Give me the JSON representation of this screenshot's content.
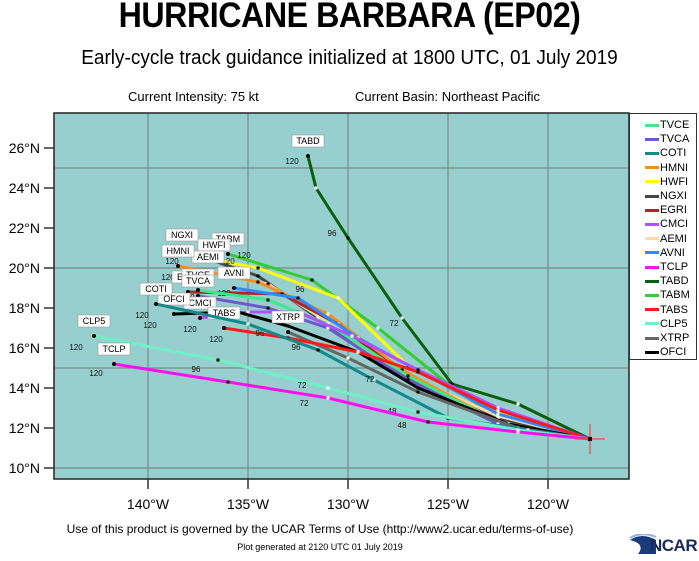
{
  "header": {
    "title": "HURRICANE BARBARA (EP02)",
    "subtitle": "Early-cycle track guidance initialized at 1800 UTC, 01 July 2019",
    "intensity": "Current Intensity: 75 kt",
    "basin": "Current Basin: Northeast Pacific"
  },
  "footer": {
    "terms": "Use of this product is governed by the UCAR Terms of Use (http://www2.ucar.edu/terms-of-use)",
    "generated": "Plot generated at 2120 UTC   01 July 2019",
    "logo": "NCAR"
  },
  "colors": {
    "ocean": "#97cfce",
    "grid": "#7a8a8a",
    "marker": "#e05050"
  },
  "chart_data": {
    "type": "map-tracks",
    "title": "HURRICANE BARBARA (EP02)",
    "subtitle": "Early-cycle track guidance initialized at 1800 UTC, 01 July 2019",
    "lon_range": [
      -144.7,
      -116.0
    ],
    "lat_range": [
      9.5,
      27.75
    ],
    "lon_ticks": [
      "140°W",
      "135°W",
      "130°W",
      "125°W",
      "120°W"
    ],
    "lon_tick_values": [
      -140,
      -135,
      -130,
      -125,
      -120
    ],
    "lat_ticks": [
      "10°N",
      "12°N",
      "14°N",
      "16°N",
      "18°N",
      "20°N",
      "22°N",
      "24°N",
      "26°N"
    ],
    "lat_tick_values": [
      10,
      12,
      14,
      16,
      18,
      20,
      22,
      24,
      26
    ],
    "gridlines_lat": [
      10,
      15,
      20,
      25
    ],
    "gridlines_lon": [
      -140,
      -135,
      -130,
      -125,
      -120
    ],
    "initial_position": {
      "lon": -117.9,
      "lat": 11.45
    },
    "legend": [
      {
        "name": "TVCE",
        "color": "#3ee88c"
      },
      {
        "name": "TVCA",
        "color": "#6a5acd"
      },
      {
        "name": "COTI",
        "color": "#138a8a"
      },
      {
        "name": "HMNI",
        "color": "#ff8c1a"
      },
      {
        "name": "HWFI",
        "color": "#ffff00"
      },
      {
        "name": "NGXI",
        "color": "#444444"
      },
      {
        "name": "EGRI",
        "color": "#a52a2a"
      },
      {
        "name": "CMCI",
        "color": "#b050ff"
      },
      {
        "name": "AEMI",
        "color": "#ffd7a8"
      },
      {
        "name": "AVNI",
        "color": "#2b8cff"
      },
      {
        "name": "TCLP",
        "color": "#ff10f0"
      },
      {
        "name": "TABD",
        "color": "#0b5e0b"
      },
      {
        "name": "TABM",
        "color": "#33cc33"
      },
      {
        "name": "TABS",
        "color": "#ff1a1a"
      },
      {
        "name": "CLP5",
        "color": "#70f0c8"
      },
      {
        "name": "XTRP",
        "color": "#666666"
      },
      {
        "name": "OFCI",
        "color": "#000000"
      }
    ],
    "tracks": [
      {
        "name": "TABD",
        "points": [
          [
            -117.9,
            11.45
          ],
          [
            -121.5,
            13.2
          ],
          [
            -124.8,
            14.2
          ],
          [
            -127.3,
            17.5
          ],
          [
            -130.0,
            21.5
          ],
          [
            -131.6,
            24.0
          ],
          [
            -132.0,
            25.6
          ]
        ],
        "labels": [
          {
            "t": "96",
            "lon": -130.8,
            "lat": 21.6
          },
          {
            "t": "120",
            "lon": -132.8,
            "lat": 25.2
          }
        ]
      },
      {
        "name": "TABM",
        "points": [
          [
            -117.9,
            11.45
          ],
          [
            -122.5,
            12.5
          ],
          [
            -125.0,
            14.2
          ],
          [
            -128.5,
            17.0
          ],
          [
            -131.8,
            19.4
          ],
          [
            -136.0,
            20.7
          ]
        ],
        "labels": [
          {
            "t": "72",
            "lon": -127.7,
            "lat": 17.1
          },
          {
            "t": "96",
            "lon": -132.4,
            "lat": 18.8
          },
          {
            "t": "120",
            "lon": -135.2,
            "lat": 20.5
          }
        ]
      },
      {
        "name": "HWFI",
        "points": [
          [
            -117.9,
            11.45
          ],
          [
            -122.5,
            12.8
          ],
          [
            -127.0,
            15.1
          ],
          [
            -130.5,
            18.5
          ],
          [
            -134.5,
            20.0
          ],
          [
            -136.7,
            20.4
          ]
        ],
        "labels": [
          {
            "t": "120",
            "lon": -136.0,
            "lat": 20.2
          }
        ]
      },
      {
        "name": "NGXI",
        "points": [
          [
            -117.9,
            11.45
          ],
          [
            -122.5,
            12.5
          ],
          [
            -127.5,
            14.7
          ],
          [
            -131.5,
            17.5
          ],
          [
            -134.5,
            19.6
          ],
          [
            -138.3,
            20.9
          ]
        ],
        "labels": [
          {
            "t": "120",
            "lon": -138.8,
            "lat": 20.2
          }
        ]
      },
      {
        "name": "AEMI",
        "points": [
          [
            -117.9,
            11.45
          ],
          [
            -122.5,
            12.6
          ],
          [
            -127.5,
            14.8
          ],
          [
            -131.5,
            17.6
          ],
          [
            -134.0,
            19.2
          ],
          [
            -137.0,
            19.8
          ]
        ],
        "labels": [
          {
            "t": "120",
            "lon": -137.5,
            "lat": 19.5
          }
        ]
      },
      {
        "name": "HMNI",
        "points": [
          [
            -117.9,
            11.45
          ],
          [
            -122.5,
            12.3
          ],
          [
            -127.3,
            14.9
          ],
          [
            -131.0,
            17.7
          ],
          [
            -134.5,
            19.3
          ],
          [
            -138.5,
            20.1
          ]
        ],
        "labels": [
          {
            "t": "120",
            "lon": -139.0,
            "lat": 19.4
          }
        ]
      },
      {
        "name": "EGRI",
        "points": [
          [
            -117.9,
            11.45
          ],
          [
            -122.5,
            12.3
          ],
          [
            -127.0,
            14.5
          ],
          [
            -130.5,
            17.2
          ],
          [
            -133.3,
            18.7
          ],
          [
            -138.0,
            18.8
          ]
        ],
        "labels": [
          {
            "t": "120",
            "lon": -139.0,
            "lat": 18.3
          }
        ]
      },
      {
        "name": "AVNI",
        "points": [
          [
            -117.9,
            11.45
          ],
          [
            -122.5,
            12.7
          ],
          [
            -126.0,
            14.6
          ],
          [
            -129.5,
            16.5
          ],
          [
            -132.5,
            18.5
          ],
          [
            -135.7,
            19.0
          ]
        ],
        "labels": [
          {
            "t": "120",
            "lon": -136.2,
            "lat": 18.6
          }
        ]
      },
      {
        "name": "TVCE",
        "points": [
          [
            -117.9,
            11.45
          ],
          [
            -122.5,
            12.3
          ],
          [
            -127.0,
            14.6
          ],
          [
            -131.0,
            17.2
          ],
          [
            -134.0,
            18.4
          ],
          [
            -137.5,
            18.9
          ]
        ],
        "labels": [
          {
            "t": "120",
            "lon": -138.0,
            "lat": 18.4
          }
        ]
      },
      {
        "name": "TVCA",
        "points": [
          [
            -117.9,
            11.45
          ],
          [
            -122.5,
            12.2
          ],
          [
            -127.0,
            14.4
          ],
          [
            -131.0,
            17.0
          ],
          [
            -134.0,
            18.0
          ],
          [
            -137.5,
            18.6
          ]
        ],
        "labels": [
          {
            "t": "120",
            "lon": -137.8,
            "lat": 18.2
          }
        ]
      },
      {
        "name": "CMCI",
        "points": [
          [
            -117.9,
            11.45
          ],
          [
            -122.5,
            13.0
          ],
          [
            -126.5,
            14.9
          ],
          [
            -129.8,
            16.6
          ],
          [
            -132.5,
            17.8
          ],
          [
            -135.0,
            17.8
          ],
          [
            -137.4,
            17.5
          ]
        ],
        "labels": [
          {
            "t": "120",
            "lon": -137.9,
            "lat": 16.8
          }
        ]
      },
      {
        "name": "OFCI",
        "points": [
          [
            -117.9,
            11.45
          ],
          [
            -122.0,
            12.2
          ],
          [
            -126.5,
            14.0
          ],
          [
            -129.5,
            15.8
          ],
          [
            -133.0,
            17.1
          ],
          [
            -135.5,
            17.8
          ],
          [
            -138.7,
            17.7
          ]
        ],
        "labels": [
          {
            "t": "120",
            "lon": -139.9,
            "lat": 17.0
          }
        ]
      },
      {
        "name": "XTRP",
        "points": [
          [
            -117.9,
            11.45
          ],
          [
            -121.5,
            12.0
          ],
          [
            -126.5,
            13.8
          ],
          [
            -130.0,
            15.5
          ],
          [
            -133.0,
            16.8
          ]
        ],
        "labels": []
      },
      {
        "name": "TABS",
        "points": [
          [
            -117.9,
            11.45
          ],
          [
            -122.5,
            12.9
          ],
          [
            -126.5,
            14.8
          ],
          [
            -129.5,
            15.8
          ],
          [
            -133.0,
            16.5
          ],
          [
            -136.2,
            17.0
          ]
        ],
        "labels": [
          {
            "t": "96",
            "lon": -134.4,
            "lat": 16.6
          },
          {
            "t": "120",
            "lon": -136.6,
            "lat": 16.3
          }
        ]
      },
      {
        "name": "COTI",
        "points": [
          [
            -117.9,
            11.45
          ],
          [
            -121.0,
            11.9
          ],
          [
            -125.0,
            12.5
          ],
          [
            -128.7,
            14.4
          ],
          [
            -131.5,
            15.9
          ],
          [
            -135.0,
            17.2
          ],
          [
            -139.6,
            18.2
          ]
        ],
        "labels": [
          {
            "t": "72",
            "lon": -128.9,
            "lat": 14.3
          },
          {
            "t": "96",
            "lon": -132.6,
            "lat": 15.9
          },
          {
            "t": "120",
            "lon": -140.3,
            "lat": 17.5
          }
        ]
      },
      {
        "name": "CLP5",
        "points": [
          [
            -117.9,
            11.45
          ],
          [
            -121.5,
            11.9
          ],
          [
            -126.5,
            12.8
          ],
          [
            -131.0,
            14.0
          ],
          [
            -136.5,
            15.4
          ],
          [
            -142.7,
            16.6
          ]
        ],
        "labels": [
          {
            "t": "48",
            "lon": -127.8,
            "lat": 12.7
          },
          {
            "t": "72",
            "lon": -132.3,
            "lat": 14.0
          },
          {
            "t": "96",
            "lon": -137.6,
            "lat": 14.8
          },
          {
            "t": "120",
            "lon": -143.6,
            "lat": 15.9
          }
        ]
      },
      {
        "name": "TCLP",
        "points": [
          [
            -117.9,
            11.45
          ],
          [
            -121.5,
            11.8
          ],
          [
            -126.0,
            12.3
          ],
          [
            -131.0,
            13.5
          ],
          [
            -136.0,
            14.3
          ],
          [
            -141.7,
            15.2
          ]
        ],
        "labels": [
          {
            "t": "48",
            "lon": -127.3,
            "lat": 12.0
          },
          {
            "t": "72",
            "lon": -132.2,
            "lat": 13.1
          },
          {
            "t": "120",
            "lon": -142.6,
            "lat": 14.6
          }
        ]
      }
    ]
  }
}
